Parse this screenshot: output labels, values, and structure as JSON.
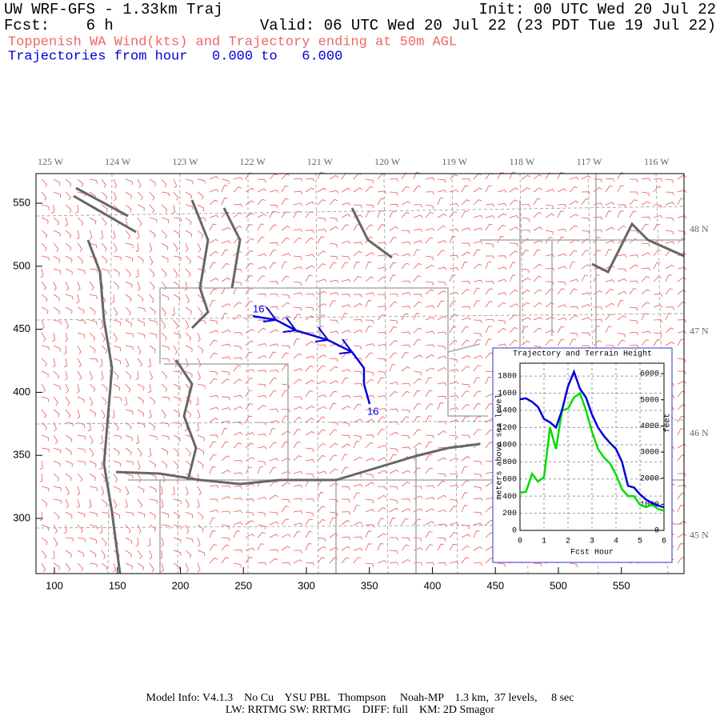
{
  "header": {
    "title": "UW WRF-GFS - 1.33km Traj",
    "init": "Init: 00 UTC Wed 20 Jul 22",
    "forecast": "Fcst:    6 h",
    "valid": "Valid: 06 UTC Wed 20 Jul 22 (23 PDT Tue 19 Jul 22)",
    "subtitle": "Toppenish WA Wind(kts) and Trajectory ending at 50m AGL",
    "trajectory_range": "Trajectories from hour   0.000 to   6.000"
  },
  "map": {
    "xlim": [
      85.4,
      599.7
    ],
    "ylim": [
      256.2,
      573.5
    ],
    "xticks": [
      100,
      150,
      200,
      250,
      300,
      350,
      400,
      450,
      500,
      550
    ],
    "yticks": [
      300,
      350,
      400,
      450,
      500,
      550
    ],
    "longitude_labels": [
      "125 W",
      "124 W",
      "123 W",
      "122 W",
      "121 W",
      "120 W",
      "119 W",
      "118 W",
      "117 W",
      "116 W"
    ],
    "latitude_labels": [
      "48 N",
      "47 N",
      "46 N",
      "45 N"
    ],
    "trajectory": {
      "color": "#0000dd",
      "start_label": "16",
      "end_label": "16",
      "x": [
        257.5,
        275.9,
        291.7,
        317.1,
        336.2,
        345.7,
        345.7,
        350.2
      ],
      "y": [
        460.5,
        457.4,
        449.1,
        441.5,
        432.0,
        419.3,
        406.6,
        390.7
      ]
    }
  },
  "chart_data": {
    "type": "line",
    "title": "Trajectory and Terrain Height",
    "xlabel": "Fcst Hour",
    "ylabel": "meters above sea level",
    "y2label": "feet",
    "x": [
      0,
      0.25,
      0.5,
      0.75,
      1,
      1.25,
      1.5,
      1.75,
      2,
      2.25,
      2.5,
      2.75,
      3,
      3.25,
      3.5,
      3.75,
      4,
      4.25,
      4.5,
      4.75,
      5,
      5.25,
      5.5,
      5.75,
      6
    ],
    "series": [
      {
        "color": "#00dd00",
        "values": [
          440,
          450,
          660,
          570,
          620,
          1200,
          950,
          1400,
          1420,
          1550,
          1600,
          1400,
          1150,
          950,
          850,
          780,
          650,
          480,
          400,
          400,
          300,
          270,
          300,
          250,
          230
        ]
      },
      {
        "color": "#0000dd",
        "values": [
          1530,
          1540,
          1500,
          1440,
          1300,
          1260,
          1200,
          1400,
          1680,
          1850,
          1650,
          1550,
          1350,
          1200,
          1100,
          1020,
          950,
          800,
          520,
          500,
          420,
          360,
          320,
          290,
          270
        ]
      }
    ],
    "xlim": [
      0,
      6
    ],
    "xticks": [
      0,
      1,
      2,
      3,
      4,
      5,
      6
    ],
    "ylim": [
      0,
      1950
    ],
    "yticks": [
      0,
      200,
      400,
      600,
      800,
      1000,
      1200,
      1400,
      1600,
      1800
    ],
    "y2lim": [
      0,
      6400
    ],
    "y2ticks": [
      0,
      1000,
      2000,
      3000,
      4000,
      5000,
      6000
    ],
    "grid": true
  },
  "footer": {
    "line1": "Model Info: V4.1.3    No Cu    YSU PBL   Thompson     Noah-MP    1.3 km,  37 levels,     8 sec",
    "line2": "LW: RRTMG SW: RRTMG    DIFF: full    KM: 2D Smagor"
  }
}
